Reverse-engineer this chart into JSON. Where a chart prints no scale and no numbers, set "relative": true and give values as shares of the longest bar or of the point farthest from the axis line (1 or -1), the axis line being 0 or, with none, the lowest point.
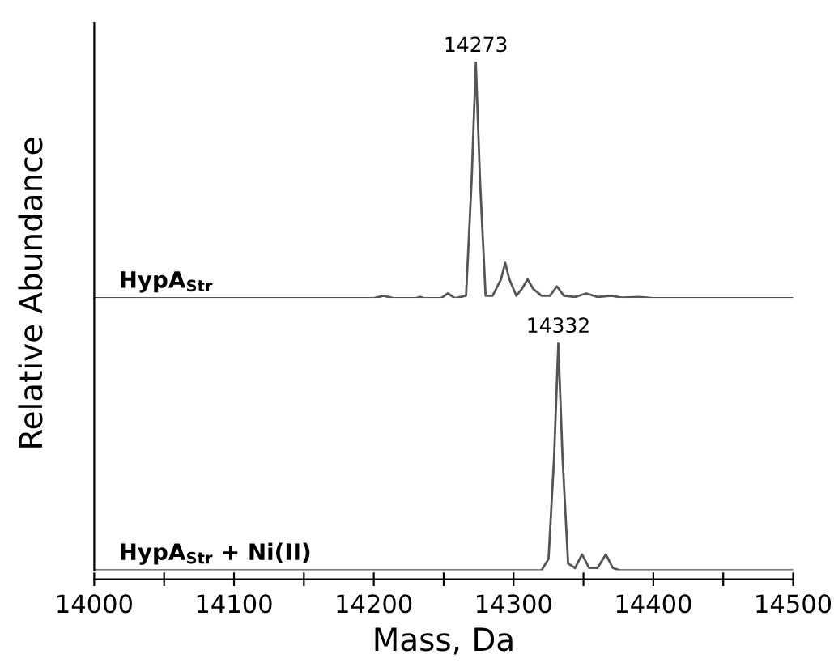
{
  "chart_data": [
    {
      "type": "line",
      "relative": true,
      "ylabel": "Relative Abundance",
      "xlim": [
        14000,
        14500
      ],
      "tick_labels": false,
      "grid": false,
      "legend": false,
      "marker": "none",
      "line_style": "solid",
      "annotations": [
        {
          "text": "14273",
          "x": 14273,
          "y": 1
        },
        "HypA$_{Str}$"
      ],
      "series": [
        {
          "color": "#555555",
          "x": [
            14000,
            14200,
            14207,
            14214,
            14230,
            14233,
            14236,
            14248,
            14253,
            14258,
            14266,
            14270,
            14273,
            14276,
            14280,
            14285,
            14291,
            14294,
            14297,
            14302,
            14306,
            14310,
            14314,
            14320,
            14326,
            14331,
            14336,
            14344,
            14352,
            14360,
            14370,
            14378,
            14390,
            14400,
            14500
          ],
          "values": [
            0,
            0,
            0.01,
            0,
            0,
            0.005,
            0,
            0,
            0.02,
            0,
            0.01,
            0.5,
            1,
            0.5,
            0.01,
            0.01,
            0.08,
            0.15,
            0.08,
            0.01,
            0.04,
            0.08,
            0.04,
            0.01,
            0.01,
            0.05,
            0.01,
            0.005,
            0.02,
            0.005,
            0.01,
            0.002,
            0.005,
            0,
            0
          ]
        }
      ]
    },
    {
      "type": "line",
      "relative": true,
      "xlabel": "Mass, Da",
      "xlim": [
        14000,
        14500
      ],
      "tick_labels": "x",
      "grid": false,
      "legend": false,
      "marker": "none",
      "line_style": "solid",
      "xticks": [
        14000,
        {
          "value": 14050,
          "label": null
        },
        14100,
        {
          "value": 14150,
          "label": null
        },
        14200,
        {
          "value": 14250,
          "label": null
        },
        14300,
        {
          "value": 14350,
          "label": null
        },
        14400,
        {
          "value": 14450,
          "label": null
        },
        14500
      ],
      "annotations": [
        {
          "text": "14332",
          "x": 14332,
          "y": 1
        },
        "HypA$_{Str}$ + Ni(II)"
      ],
      "series": [
        {
          "color": "#555555",
          "x": [
            14000,
            14320,
            14325,
            14329,
            14332,
            14335,
            14339,
            14344,
            14349,
            14354,
            14360,
            14366,
            14371,
            14376,
            14500
          ],
          "values": [
            0,
            0,
            0.05,
            0.5,
            1,
            0.5,
            0.03,
            0.01,
            0.07,
            0.01,
            0.01,
            0.07,
            0.01,
            0,
            0
          ]
        }
      ]
    }
  ]
}
